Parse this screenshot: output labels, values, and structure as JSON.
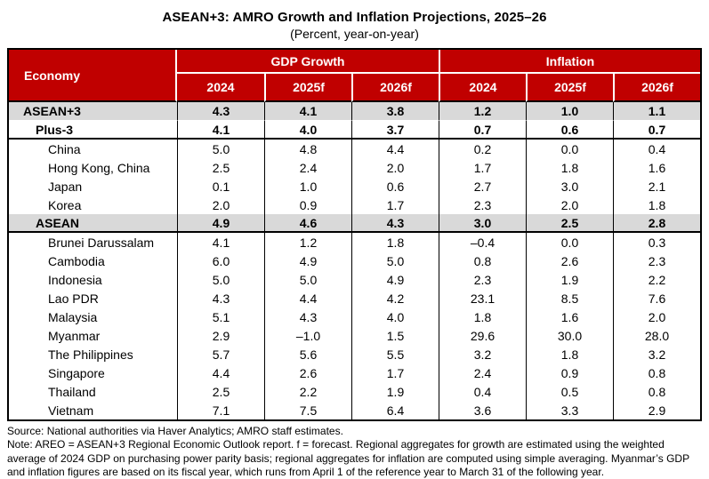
{
  "title": "ASEAN+3: AMRO Growth and Inflation Projections, 2025–26",
  "subtitle": "(Percent, year-on-year)",
  "colors": {
    "header_red": "#c00000",
    "section_gray": "#d9d9d9",
    "header_text": "#ffffff"
  },
  "table": {
    "economy_header": "Economy",
    "group_headers": {
      "gdp": "GDP Growth",
      "inflation": "Inflation"
    },
    "year_headers": [
      "2024",
      "2025f",
      "2026f",
      "2024",
      "2025f",
      "2026f"
    ],
    "rows": [
      {
        "economy": "ASEAN+3",
        "level": 1,
        "style": "aggregate-shaded-first",
        "values": [
          "4.3",
          "4.1",
          "3.8",
          "1.2",
          "1.0",
          "1.1"
        ]
      },
      {
        "economy": "Plus-3",
        "level": 2,
        "style": "aggregate-bold",
        "values": [
          "4.1",
          "4.0",
          "3.7",
          "0.7",
          "0.6",
          "0.7"
        ]
      },
      {
        "economy": "China",
        "level": 3,
        "style": "member",
        "values": [
          "5.0",
          "4.8",
          "4.4",
          "0.2",
          "0.0",
          "0.4"
        ]
      },
      {
        "economy": "Hong Kong, China",
        "level": 3,
        "style": "member",
        "values": [
          "2.5",
          "2.4",
          "2.0",
          "1.7",
          "1.8",
          "1.6"
        ]
      },
      {
        "economy": "Japan",
        "level": 3,
        "style": "member",
        "values": [
          "0.1",
          "1.0",
          "0.6",
          "2.7",
          "3.0",
          "2.1"
        ]
      },
      {
        "economy": "Korea",
        "level": 3,
        "style": "member",
        "values": [
          "2.0",
          "0.9",
          "1.7",
          "2.3",
          "2.0",
          "1.8"
        ]
      },
      {
        "economy": "ASEAN",
        "level": 2,
        "style": "aggregate-shaded",
        "values": [
          "4.9",
          "4.6",
          "4.3",
          "3.0",
          "2.5",
          "2.8"
        ]
      },
      {
        "economy": "Brunei Darussalam",
        "level": 3,
        "style": "member",
        "values": [
          "4.1",
          "1.2",
          "1.8",
          "–0.4",
          "0.0",
          "0.3"
        ]
      },
      {
        "economy": "Cambodia",
        "level": 3,
        "style": "member",
        "values": [
          "6.0",
          "4.9",
          "5.0",
          "0.8",
          "2.6",
          "2.3"
        ]
      },
      {
        "economy": "Indonesia",
        "level": 3,
        "style": "member",
        "values": [
          "5.0",
          "5.0",
          "4.9",
          "2.3",
          "1.9",
          "2.2"
        ]
      },
      {
        "economy": "Lao PDR",
        "level": 3,
        "style": "member",
        "values": [
          "4.3",
          "4.4",
          "4.2",
          "23.1",
          "8.5",
          "7.6"
        ]
      },
      {
        "economy": "Malaysia",
        "level": 3,
        "style": "member",
        "values": [
          "5.1",
          "4.3",
          "4.0",
          "1.8",
          "1.6",
          "2.0"
        ]
      },
      {
        "economy": "Myanmar",
        "level": 3,
        "style": "member",
        "values": [
          "2.9",
          "–1.0",
          "1.5",
          "29.6",
          "30.0",
          "28.0"
        ]
      },
      {
        "economy": "The Philippines",
        "level": 3,
        "style": "member",
        "values": [
          "5.7",
          "5.6",
          "5.5",
          "3.2",
          "1.8",
          "3.2"
        ]
      },
      {
        "economy": "Singapore",
        "level": 3,
        "style": "member",
        "values": [
          "4.4",
          "2.6",
          "1.7",
          "2.4",
          "0.9",
          "0.8"
        ]
      },
      {
        "economy": "Thailand",
        "level": 3,
        "style": "member",
        "values": [
          "2.5",
          "2.2",
          "1.9",
          "0.4",
          "0.5",
          "0.8"
        ]
      },
      {
        "economy": "Vietnam",
        "level": 3,
        "style": "member",
        "values": [
          "7.1",
          "7.5",
          "6.4",
          "3.6",
          "3.3",
          "2.9"
        ]
      }
    ]
  },
  "chart_data": {
    "type": "table",
    "title": "ASEAN+3: AMRO Growth and Inflation Projections, 2025–26",
    "subtitle": "(Percent, year-on-year)",
    "columns": [
      "Economy",
      "GDP Growth 2024",
      "GDP Growth 2025f",
      "GDP Growth 2026f",
      "Inflation 2024",
      "Inflation 2025f",
      "Inflation 2026f"
    ],
    "series": [
      {
        "name": "ASEAN+3",
        "values": [
          4.3,
          4.1,
          3.8,
          1.2,
          1.0,
          1.1
        ]
      },
      {
        "name": "Plus-3",
        "values": [
          4.1,
          4.0,
          3.7,
          0.7,
          0.6,
          0.7
        ]
      },
      {
        "name": "China",
        "values": [
          5.0,
          4.8,
          4.4,
          0.2,
          0.0,
          0.4
        ]
      },
      {
        "name": "Hong Kong, China",
        "values": [
          2.5,
          2.4,
          2.0,
          1.7,
          1.8,
          1.6
        ]
      },
      {
        "name": "Japan",
        "values": [
          0.1,
          1.0,
          0.6,
          2.7,
          3.0,
          2.1
        ]
      },
      {
        "name": "Korea",
        "values": [
          2.0,
          0.9,
          1.7,
          2.3,
          2.0,
          1.8
        ]
      },
      {
        "name": "ASEAN",
        "values": [
          4.9,
          4.6,
          4.3,
          3.0,
          2.5,
          2.8
        ]
      },
      {
        "name": "Brunei Darussalam",
        "values": [
          4.1,
          1.2,
          1.8,
          -0.4,
          0.0,
          0.3
        ]
      },
      {
        "name": "Cambodia",
        "values": [
          6.0,
          4.9,
          5.0,
          0.8,
          2.6,
          2.3
        ]
      },
      {
        "name": "Indonesia",
        "values": [
          5.0,
          5.0,
          4.9,
          2.3,
          1.9,
          2.2
        ]
      },
      {
        "name": "Lao PDR",
        "values": [
          4.3,
          4.4,
          4.2,
          23.1,
          8.5,
          7.6
        ]
      },
      {
        "name": "Malaysia",
        "values": [
          5.1,
          4.3,
          4.0,
          1.8,
          1.6,
          2.0
        ]
      },
      {
        "name": "Myanmar",
        "values": [
          2.9,
          -1.0,
          1.5,
          29.6,
          30.0,
          28.0
        ]
      },
      {
        "name": "The Philippines",
        "values": [
          5.7,
          5.6,
          5.5,
          3.2,
          1.8,
          3.2
        ]
      },
      {
        "name": "Singapore",
        "values": [
          4.4,
          2.6,
          1.7,
          2.4,
          0.9,
          0.8
        ]
      },
      {
        "name": "Thailand",
        "values": [
          2.5,
          2.2,
          1.9,
          0.4,
          0.5,
          0.8
        ]
      },
      {
        "name": "Vietnam",
        "values": [
          7.1,
          7.5,
          6.4,
          3.6,
          3.3,
          2.9
        ]
      }
    ]
  },
  "footer": {
    "source": "Source: National authorities via Haver Analytics; AMRO staff estimates.",
    "note": "Note: AREO = ASEAN+3 Regional Economic Outlook report. f = forecast. Regional aggregates for growth are estimated using the weighted average of 2024 GDP on purchasing power parity basis; regional aggregates for inflation are computed using simple averaging. Myanmar’s GDP and inflation figures are based on its fiscal year, which runs from April 1 of the reference year to March 31 of the following year."
  }
}
